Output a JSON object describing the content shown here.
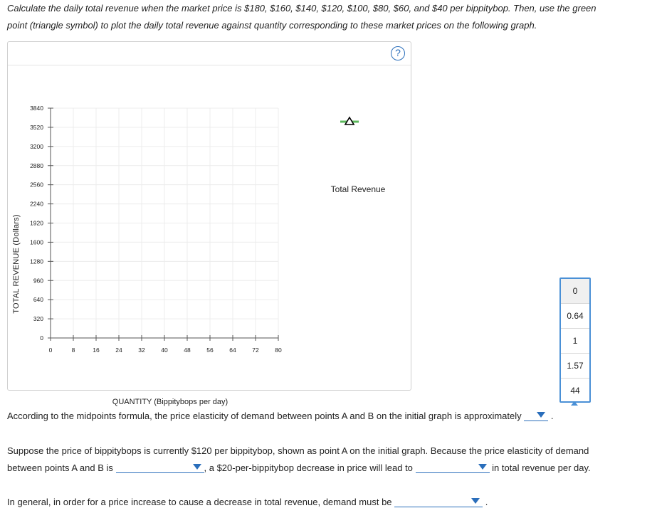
{
  "instructions": {
    "line1": "Calculate the daily total revenue when the market price is $180, $160, $140, $120, $100, $80, $60, and $40 per bippitybop. Then, use the green",
    "line2": "point (triangle symbol) to plot the daily total revenue against quantity corresponding to these market prices on the following graph."
  },
  "graph": {
    "help_symbol": "?",
    "help_icon": "question-circle-icon",
    "legend_label": "Total Revenue",
    "legend_symbol_color": "#5cb85c",
    "triangle_color": "#000000"
  },
  "chart_data": {
    "type": "scatter",
    "title": "",
    "xlabel": "QUANTITY (Bippitybops per day)",
    "ylabel": "TOTAL REVENUE (Dollars)",
    "x_ticks": [
      "0",
      "8",
      "16",
      "24",
      "32",
      "40",
      "48",
      "56",
      "64",
      "72",
      "80"
    ],
    "y_ticks": [
      "0",
      "320",
      "640",
      "960",
      "1280",
      "1600",
      "1920",
      "2240",
      "2560",
      "2880",
      "3200",
      "3520",
      "3840"
    ],
    "xlim": [
      0,
      80
    ],
    "ylim": [
      0,
      3840
    ],
    "grid": true,
    "series": [
      {
        "name": "Total Revenue",
        "marker": "triangle",
        "color": "#5cb85c",
        "values": []
      }
    ]
  },
  "elasticity_dropdown": {
    "options": [
      "0",
      "0.64",
      "1",
      "1.57",
      "44"
    ],
    "selected": "0"
  },
  "q1": {
    "text": "According to the midpoints formula, the price elasticity of demand between points A and B on the initial graph is approximately",
    "end": "."
  },
  "q2": {
    "line1": "Suppose the price of bippitybops is currently $120 per bippitybop, shown as point A on the initial graph. Because the price elasticity of demand",
    "line2_start": "between points A and B is",
    "line2_mid": ", a $20-per-bippitybop decrease in price will lead to",
    "line2_end": "in total revenue per day."
  },
  "q3": {
    "text": "In general, in order for a price increase to cause a decrease in total revenue, demand must be",
    "end": "."
  }
}
